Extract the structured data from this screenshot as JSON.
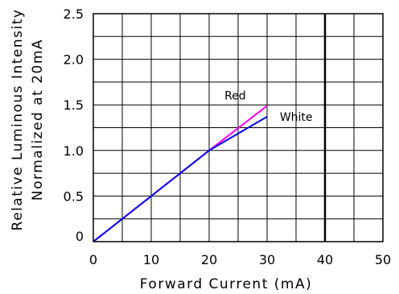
{
  "chart_data": {
    "type": "line",
    "title": "",
    "xlabel": "Forward Current (mA)",
    "ylabel_lines": [
      "Relative Luminous Intensity",
      "Normalized at 20mA"
    ],
    "xlim": [
      0,
      50
    ],
    "ylim": [
      0,
      2.5
    ],
    "x_ticks": [
      0,
      10,
      20,
      30,
      40,
      50
    ],
    "x_tick_labels": [
      "0",
      "10",
      "20",
      "30",
      "40",
      "50"
    ],
    "y_ticks": [
      0,
      0.5,
      1.0,
      1.5,
      2.0,
      2.5
    ],
    "y_tick_labels": [
      "0",
      "0.5",
      "1.0",
      "1.5",
      "2.0",
      "2.5"
    ],
    "grid": true,
    "minor_grid_step_x": 5,
    "minor_grid_step_y": 0.25,
    "reference_line_x": 40,
    "series": [
      {
        "name": "Red",
        "color": "#ff00ff",
        "x": [
          0,
          20,
          30
        ],
        "y": [
          0,
          1.0,
          1.49
        ]
      },
      {
        "name": "White",
        "color": "#0000ee",
        "x": [
          0,
          20,
          30
        ],
        "y": [
          0,
          1.0,
          1.37
        ]
      }
    ]
  }
}
